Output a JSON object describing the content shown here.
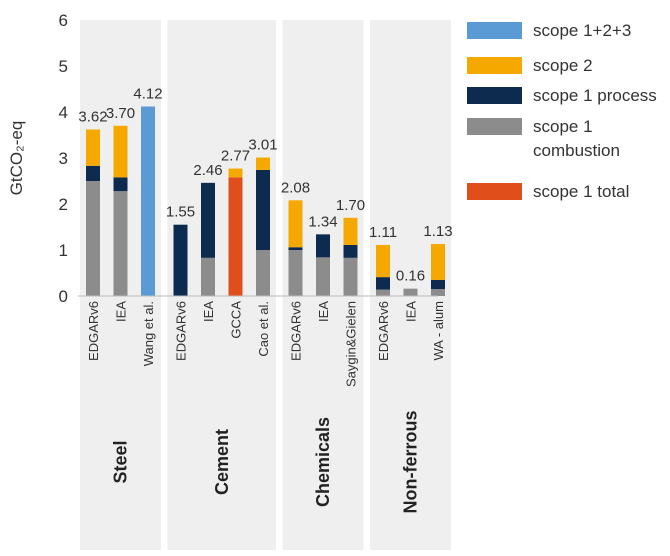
{
  "chart_data": {
    "type": "bar",
    "stacked": true,
    "ylabel": "GtCO₂-eq",
    "ylim": [
      0,
      6
    ],
    "yticks": [
      0,
      1,
      2,
      3,
      4,
      5,
      6
    ],
    "grid": false,
    "legend_position": "top-right",
    "colors": {
      "scope123": "#5b9bd5",
      "scope2": "#f5a800",
      "process": "#0c2b4e",
      "combustion": "#8c8c8c",
      "total": "#e04e1b",
      "band": "#efefef"
    },
    "legend": [
      {
        "key": "scope123",
        "label": "scope 1+2+3"
      },
      {
        "key": "scope2",
        "label": "scope 2"
      },
      {
        "key": "process",
        "label": "scope 1 process"
      },
      {
        "key": "combustion",
        "label": "scope 1 combustion"
      },
      {
        "key": "total",
        "label": "scope 1 total"
      }
    ],
    "groups": [
      {
        "name": "Steel",
        "bars": [
          {
            "label": "EDGARv6",
            "total_label": "3.62",
            "stack": {
              "combustion": 2.5,
              "process": 0.33,
              "scope2": 0.79
            }
          },
          {
            "label": "IEA",
            "total_label": "3.70",
            "stack": {
              "combustion": 2.28,
              "process": 0.3,
              "scope2": 1.12
            }
          },
          {
            "label": "Wang et al.",
            "total_label": "4.12",
            "stack": {
              "scope123": 4.12
            }
          }
        ]
      },
      {
        "name": "Cement",
        "bars": [
          {
            "label": "EDGARv6",
            "total_label": "1.55",
            "stack": {
              "process": 1.55
            }
          },
          {
            "label": "IEA",
            "total_label": "2.46",
            "stack": {
              "combustion": 0.83,
              "process": 1.63
            }
          },
          {
            "label": "GCCA",
            "total_label": "2.77",
            "stack": {
              "total": 2.58,
              "scope2": 0.19
            }
          },
          {
            "label": "Cao et al.",
            "total_label": "3.01",
            "stack": {
              "combustion": 1.0,
              "process": 1.74,
              "scope2": 0.27
            }
          }
        ]
      },
      {
        "name": "Chemicals",
        "bars": [
          {
            "label": "EDGARv6",
            "total_label": "2.08",
            "stack": {
              "combustion": 1.0,
              "process": 0.06,
              "scope2": 1.02
            }
          },
          {
            "label": "IEA",
            "total_label": "1.34",
            "stack": {
              "combustion": 0.84,
              "process": 0.5
            }
          },
          {
            "label": "Saygin&Gielen",
            "total_label": "1.70",
            "stack": {
              "combustion": 0.83,
              "process": 0.28,
              "scope2": 0.59
            }
          }
        ]
      },
      {
        "name": "Non-ferrous",
        "bars": [
          {
            "label": "EDGARv6",
            "total_label": "1.11",
            "stack": {
              "combustion": 0.14,
              "process": 0.27,
              "scope2": 0.7
            }
          },
          {
            "label": "IEA",
            "total_label": "0.16",
            "stack": {
              "combustion": 0.16
            }
          },
          {
            "label": "WA - alum",
            "total_label": "1.13",
            "stack": {
              "combustion": 0.15,
              "process": 0.2,
              "scope2": 0.78
            }
          }
        ]
      }
    ]
  }
}
